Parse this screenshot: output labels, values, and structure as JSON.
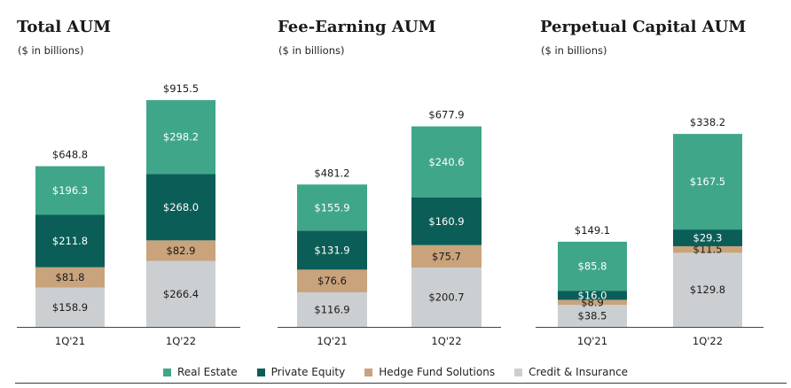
{
  "colors": {
    "Real Estate": "#3fa68a",
    "Private Equity": "#0b5e57",
    "Hedge Fund Solutions": "#c9a37b",
    "Credit & Insurance": "#cbcfd2"
  },
  "legend": [
    "Real Estate",
    "Private Equity",
    "Hedge Fund Solutions",
    "Credit & Insurance"
  ],
  "chart_data": [
    {
      "type": "bar",
      "stacked": true,
      "title": "Total AUM",
      "subtitle": "($ in billions)",
      "categories": [
        "1Q'21",
        "1Q'22"
      ],
      "series": [
        {
          "name": "Credit & Insurance",
          "values": [
            158.9,
            266.4
          ],
          "labels": [
            "$158.9",
            "$266.4"
          ]
        },
        {
          "name": "Hedge Fund Solutions",
          "values": [
            81.8,
            82.9
          ],
          "labels": [
            "$81.8",
            "$82.9"
          ]
        },
        {
          "name": "Private Equity",
          "values": [
            211.8,
            268.0
          ],
          "labels": [
            "$211.8",
            "$268.0"
          ]
        },
        {
          "name": "Real Estate",
          "values": [
            196.3,
            298.2
          ],
          "labels": [
            "$196.3",
            "$298.2"
          ]
        }
      ],
      "totals": [
        648.8,
        915.5
      ],
      "total_labels": [
        "$648.8",
        "$915.5"
      ]
    },
    {
      "type": "bar",
      "stacked": true,
      "title": "Fee-Earning AUM",
      "subtitle": "($ in billions)",
      "categories": [
        "1Q'21",
        "1Q'22"
      ],
      "series": [
        {
          "name": "Credit & Insurance",
          "values": [
            116.9,
            200.7
          ],
          "labels": [
            "$116.9",
            "$200.7"
          ]
        },
        {
          "name": "Hedge Fund Solutions",
          "values": [
            76.6,
            75.7
          ],
          "labels": [
            "$76.6",
            "$75.7"
          ]
        },
        {
          "name": "Private Equity",
          "values": [
            131.9,
            160.9
          ],
          "labels": [
            "$131.9",
            "$160.9"
          ]
        },
        {
          "name": "Real Estate",
          "values": [
            155.9,
            240.6
          ],
          "labels": [
            "$155.9",
            "$240.6"
          ]
        }
      ],
      "totals": [
        481.2,
        677.9
      ],
      "total_labels": [
        "$481.2",
        "$677.9"
      ]
    },
    {
      "type": "bar",
      "stacked": true,
      "title": "Perpetual Capital AUM",
      "subtitle": "($ in billions)",
      "categories": [
        "1Q'21",
        "1Q'22"
      ],
      "series": [
        {
          "name": "Credit & Insurance",
          "values": [
            38.5,
            129.8
          ],
          "labels": [
            "$38.5",
            "$129.8"
          ]
        },
        {
          "name": "Hedge Fund Solutions",
          "values": [
            8.9,
            11.5
          ],
          "labels": [
            "$8.9",
            "$11.5"
          ]
        },
        {
          "name": "Private Equity",
          "values": [
            16.0,
            29.3
          ],
          "labels": [
            "$16.0",
            "$29.3"
          ]
        },
        {
          "name": "Real Estate",
          "values": [
            85.8,
            167.5
          ],
          "labels": [
            "$85.8",
            "$167.5"
          ]
        }
      ],
      "totals": [
        149.1,
        338.2
      ],
      "total_labels": [
        "$149.1",
        "$338.2"
      ]
    }
  ]
}
